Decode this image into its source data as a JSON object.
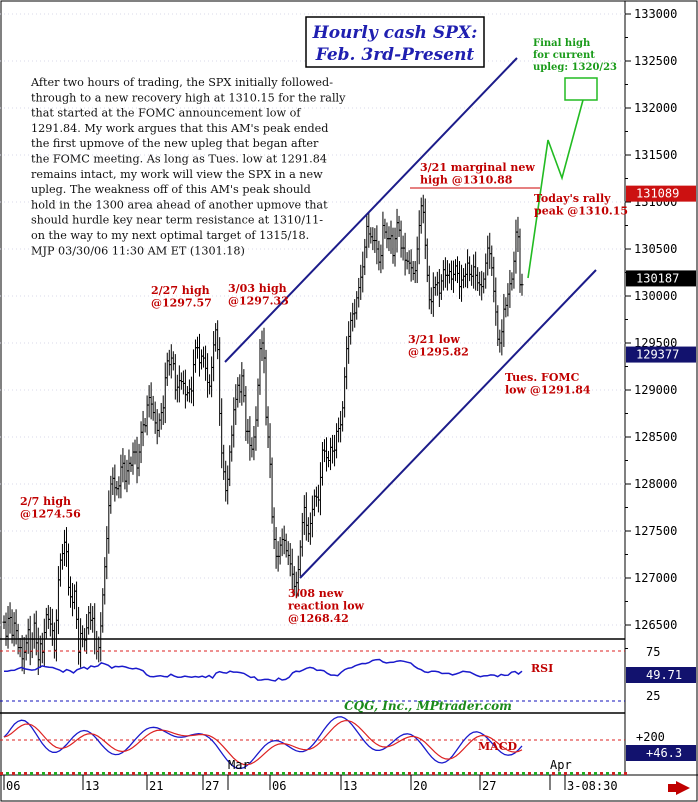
{
  "chart_data": {
    "type": "bar",
    "title": "Hourly cash SPX:",
    "subtitle": "Feb. 3rd-Present",
    "credit": "CQG, Inc., MPtrader.com",
    "ylim": [
      126150,
      133150
    ],
    "y_ticks": [
      126500,
      127000,
      127500,
      128000,
      128500,
      129000,
      129500,
      130000,
      130500,
      131000,
      131500,
      132000,
      132500,
      133000
    ],
    "price_tags": [
      {
        "value": "131089",
        "price": 131089,
        "color": "#cc1111"
      },
      {
        "value": "130187",
        "price": 130187,
        "color": "#000000"
      },
      {
        "value": "129377",
        "price": 129377,
        "color": "#12126e"
      }
    ],
    "commentary": [
      "After two hours of trading, the SPX initially followed-",
      "through to a new recovery high at 1310.15 for the rally",
      "that started at the FOMC announcement low of",
      "1291.84. My work argues that this AM's peak ended",
      "the first upmove of the new upleg that began after",
      "the FOMC meeting. As long as Tues. low at 1291.84",
      "remains intact, my work will view the SPX in a new",
      "upleg. The weakness off of this AM's peak should",
      "hold in the 1300 area ahead of another upmove that",
      "should hurdle key near term resistance at 1310/11-",
      "on the way to my next optimal target of 1315/18.",
      "MJP 03/30/06 11:30 AM ET  (1301.18)"
    ],
    "annotations": [
      {
        "lines": [
          "2/27 high",
          "@1297.57"
        ],
        "color": "red"
      },
      {
        "lines": [
          "3/03 high",
          "@1297.33"
        ],
        "color": "red"
      },
      {
        "lines": [
          "2/7 high",
          "@1274.56"
        ],
        "color": "red"
      },
      {
        "lines": [
          "3/08 new",
          "reaction low",
          "@1268.42"
        ],
        "color": "red"
      },
      {
        "lines": [
          "3/21 marginal new",
          "high @1310.88"
        ],
        "color": "red"
      },
      {
        "lines": [
          "3/21 low",
          "@1295.82"
        ],
        "color": "red"
      },
      {
        "lines": [
          "Tues. FOMC",
          "low @1291.84"
        ],
        "color": "red"
      },
      {
        "lines": [
          "Today's rally",
          "peak @1310.15"
        ],
        "color": "red"
      },
      {
        "lines": [
          "Final high",
          "for current",
          "upleg: 1320/23"
        ],
        "color": "green"
      }
    ],
    "rsi": {
      "label": "RSI",
      "tick_labels": [
        "75",
        "25"
      ],
      "current": "49.71"
    },
    "macd": {
      "label": "MACD",
      "tick_labels": [
        "+200"
      ],
      "current": "+46.3"
    },
    "x_labels": [
      "06",
      "13",
      "21",
      "27",
      "Mar",
      "06",
      "13",
      "20",
      "27",
      "Apr",
      "3-08:30"
    ],
    "prices": [
      1265.3,
      1263.8,
      1265.7,
      1265.8,
      1263.9,
      1265.2,
      1264.4,
      1262.6,
      1262.6,
      1261.4,
      1262.1,
      1263.1,
      1264.5,
      1262.2,
      1263.5,
      1265.2,
      1263.1,
      1261.3,
      1263.0,
      1262.1,
      1264.2,
      1266.1,
      1265.6,
      1265.1,
      1264.4,
      1262.3,
      1265.5,
      1269.8,
      1271.9,
      1272.6,
      1273.8,
      1272.8,
      1269.0,
      1268.0,
      1267.4,
      1268.6,
      1265.6,
      1262.1,
      1264.1,
      1263.5,
      1263.4,
      1264.7,
      1266.3,
      1265.5,
      1265.7,
      1263.5,
      1262.2,
      1262.6,
      1264.9,
      1268.2,
      1271.2,
      1274.2,
      1277.7,
      1280.0,
      1280.6,
      1279.6,
      1279.5,
      1279.8,
      1281.8,
      1282.2,
      1280.3,
      1281.4,
      1282.2,
      1282.0,
      1283.4,
      1283.4,
      1281.7,
      1283.4,
      1285.5,
      1286.3,
      1286.2,
      1288.4,
      1289.2,
      1288.5,
      1287.6,
      1286.5,
      1285.7,
      1286.8,
      1287.6,
      1288.1,
      1291.3,
      1293.1,
      1292.7,
      1293.4,
      1292.8,
      1290.0,
      1290.3,
      1291.0,
      1290.9,
      1290.7,
      1289.5,
      1289.7,
      1290.1,
      1289.9,
      1292.7,
      1294.5,
      1294.5,
      1292.9,
      1293.6,
      1293.4,
      1292.3,
      1290.8,
      1290.4,
      1292.4,
      1294.8,
      1296.4,
      1294.3,
      1287.5,
      1283.3,
      1281.3,
      1279.3,
      1280.5,
      1283.4,
      1285.2,
      1287.9,
      1289.0,
      1290.5,
      1289.8,
      1291.5,
      1289.4,
      1285.6,
      1285.6,
      1284.1,
      1283.7,
      1285.0,
      1286.8,
      1290.5,
      1294.4,
      1295.0,
      1293.4,
      1287.1,
      1285.0,
      1282.1,
      1276.5,
      1274.1,
      1272.3,
      1272.3,
      1273.5,
      1274.1,
      1274.0,
      1272.9,
      1272.4,
      1271.5,
      1270.4,
      1269.1,
      1269.5,
      1270.9,
      1273.3,
      1275.9,
      1277.5,
      1275.6,
      1274.7,
      1275.8,
      1277.3,
      1278.7,
      1278.6,
      1278.3,
      1280.7,
      1283.6,
      1283.5,
      1282.8,
      1282.5,
      1283.9,
      1283.5,
      1283.6,
      1285.6,
      1285.9,
      1286.3,
      1288.1,
      1291.4,
      1294.4,
      1295.7,
      1297.4,
      1298.1,
      1298.2,
      1299.8,
      1300.9,
      1302.0,
      1303.1,
      1305.2,
      1307.4,
      1306.6,
      1306.3,
      1305.9,
      1305.9,
      1305.0,
      1303.6,
      1304.3,
      1307.5,
      1306.8,
      1306.1,
      1306.1,
      1306.4,
      1304.3,
      1306.1,
      1307.8,
      1307.0,
      1305.1,
      1305.1,
      1303.8,
      1303.7,
      1303.5,
      1303.0,
      1302.4,
      1302.7,
      1305.0,
      1307.5,
      1309.6,
      1308.9,
      1305.4,
      1302.2,
      1299.6,
      1299.4,
      1300.9,
      1301.2,
      1301.4,
      1300.3,
      1301.6,
      1302.8,
      1302.2,
      1302.2,
      1302.6,
      1301.8,
      1302.3,
      1303.2,
      1302.4,
      1301.0,
      1301.7,
      1302.1,
      1302.3,
      1303.5,
      1302.3,
      1302.1,
      1303.1,
      1302.2,
      1301.4,
      1301.2,
      1301.0,
      1301.8,
      1303.5,
      1305.1,
      1304.5,
      1303.0,
      1300.5,
      1298.3,
      1295.4,
      1295.0,
      1296.2,
      1298.6,
      1299.0,
      1300.2,
      1301.3,
      1301.8,
      1303.7,
      1306.8,
      1306.3,
      1301.2,
      1301.2
    ],
    "rsi_values": [
      54.8,
      54.8,
      55.6,
      55.7,
      57.3,
      58.6,
      57.1,
      56.5,
      55.9,
      56.3,
      58.3,
      60.1,
      59.2,
      58.8,
      58.5,
      57.2,
      56.0,
      53.9,
      56.4,
      55.2,
      53.1,
      56.2,
      57.6,
      58.8,
      56.9,
      60.1,
      59.2,
      60.0,
      63.2,
      62.1,
      60.7,
      57.9,
      59.6,
      59.3,
      59.7,
      59.0,
      57.8,
      57.1,
      57.7,
      56.7,
      55.2,
      51.4,
      49.5,
      49.3,
      49.9,
      50.3,
      49.5,
      49.2,
      51.7,
      49.9,
      48.8,
      48.9,
      49.9,
      49.3,
      48.8,
      49.5,
      48.9,
      49.8,
      48.6,
      50.5,
      48.0,
      52.9,
      54.3,
      53.4,
      52.9,
      54.8,
      53.9,
      53.9,
      53.4,
      52.6,
      50.5,
      48.5,
      49.1,
      45.9,
      46.0,
      46.6,
      46.6,
      45.7,
      45.0,
      47.9,
      46.0,
      46.6,
      48.7,
      53.1,
      54.8,
      54.4,
      55.9,
      57.7,
      58.6,
      57.9,
      55.6,
      55.9,
      55.3,
      52.7,
      50.9,
      50.9,
      50.3,
      53.7,
      56.4,
      57.8,
      58.3,
      60.2,
      61.4,
      62.5,
      62.4,
      63.4,
      65.5,
      66.3,
      66.5,
      64.1,
      63.0,
      63.6,
      63.7,
      64.8,
      65.2,
      64.7,
      63.8,
      63.0,
      59.9,
      57.6,
      56.3,
      54.1,
      53.5,
      54.8,
      54.7,
      54.1,
      52.5,
      52.6,
      52.6,
      51.1,
      52.0,
      53.2,
      54.7,
      54.3,
      53.9,
      52.2,
      50.5,
      49.3,
      50.1,
      50.2,
      51.1,
      50.9,
      49.4,
      51.6,
      50.6,
      50.8,
      53.8,
      54.5,
      52.0,
      54.8
    ],
    "macd_values": [
      1.08,
      1.5,
      2.06,
      2.56,
      2.87,
      3.01,
      2.94,
      2.65,
      2.18,
      1.59,
      0.96,
      0.37,
      -0.11,
      -0.46,
      -0.64,
      -0.64,
      -0.47,
      -0.16,
      0.24,
      0.7,
      1.14,
      1.5,
      1.75,
      1.84,
      1.77,
      1.54,
      1.18,
      0.73,
      0.26,
      -0.18,
      -0.55,
      -0.8,
      -0.91,
      -0.88,
      -0.69,
      -0.38,
      0.01,
      0.46,
      0.92,
      1.35,
      1.72,
      2.0,
      2.16,
      2.2,
      2.14,
      1.99,
      1.78,
      1.56,
      1.35,
      1.19,
      1.09,
      1.07,
      1.12,
      1.22,
      1.33,
      1.43,
      1.47,
      1.43,
      1.28,
      1.02,
      0.64,
      0.17,
      -0.37,
      -0.93,
      -1.45,
      -1.91,
      -2.25,
      -2.45,
      -2.49,
      -2.38,
      -2.12,
      -1.75,
      -1.29,
      -0.8,
      -0.33,
      0.09,
      0.41,
      0.62,
      0.69,
      0.64,
      0.48,
      0.25,
      -0.01,
      -0.26,
      -0.46,
      -0.57,
      -0.56,
      -0.42,
      -0.13,
      0.28,
      0.78,
      1.34,
      1.91,
      2.43,
      2.88,
      3.2,
      3.37,
      3.39,
      3.24,
      2.95,
      2.53,
      2.03,
      1.49,
      0.95,
      0.45,
      0.04,
      -0.26,
      -0.42,
      -0.43,
      -0.31,
      -0.07,
      0.24,
      0.59,
      0.93,
      1.21,
      1.4,
      1.46,
      1.38,
      1.15,
      0.79,
      0.33,
      -0.19,
      -0.71,
      -1.19,
      -1.56,
      -1.79,
      -1.86,
      -1.75,
      -1.47,
      -1.05,
      -0.53,
      0.03,
      0.58,
      1.05,
      1.42,
      1.64,
      1.69,
      1.58,
      1.34,
      0.98,
      0.56,
      0.11,
      -0.31,
      -0.66,
      -0.89,
      -0.98,
      -0.92,
      -0.71,
      -0.36,
      0.08
    ]
  }
}
